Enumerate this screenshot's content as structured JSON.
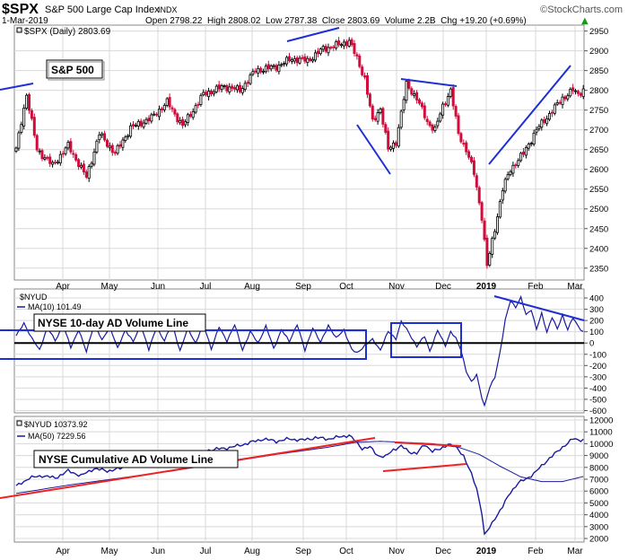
{
  "header": {
    "symbol": "$SPX",
    "name": "S&P 500 Large Cap Index",
    "exchange": "INDX",
    "date": "1-Mar-2019",
    "ohlc": "Open 2798.22  High 2808.02  Low 2787.38  Close 2803.69  Volume 2.2B  Chg +19.20 (+0.69%)",
    "change_arrow": "▲",
    "watermark": "©StockCharts.com"
  },
  "colors": {
    "up": "#000000",
    "down": "#d00c3c",
    "trendline_blue": "#1f2fd6",
    "trendline_red": "#ee2222",
    "indicator": "#1a1a9e",
    "zero_line": "#000000",
    "grid": "#d8d8d8"
  },
  "chart_data": [
    {
      "type": "candlestick",
      "legend": "$SPX (Daily) 2803.69",
      "annotation": "S&P 500",
      "ylim": [
        2320,
        2965
      ],
      "yticks": [
        2350,
        2400,
        2450,
        2500,
        2550,
        2600,
        2650,
        2700,
        2750,
        2800,
        2850,
        2900,
        2950
      ],
      "months": [
        "Apr",
        "May",
        "Jun",
        "Jul",
        "Aug",
        "Sep",
        "Oct",
        "Nov",
        "Dec",
        "2019",
        "Feb",
        "Mar"
      ],
      "close_anchors": [
        [
          0,
          2650
        ],
        [
          4,
          2790
        ],
        [
          8,
          2650
        ],
        [
          14,
          2610
        ],
        [
          20,
          2660
        ],
        [
          27,
          2580
        ],
        [
          32,
          2690
        ],
        [
          38,
          2640
        ],
        [
          44,
          2705
        ],
        [
          52,
          2730
        ],
        [
          58,
          2770
        ],
        [
          64,
          2710
        ],
        [
          72,
          2790
        ],
        [
          80,
          2810
        ],
        [
          86,
          2800
        ],
        [
          92,
          2850
        ],
        [
          100,
          2860
        ],
        [
          106,
          2880
        ],
        [
          112,
          2875
        ],
        [
          118,
          2905
        ],
        [
          124,
          2915
        ],
        [
          128,
          2925
        ],
        [
          131,
          2880
        ],
        [
          134,
          2830
        ],
        [
          137,
          2720
        ],
        [
          140,
          2755
        ],
        [
          143,
          2650
        ],
        [
          146,
          2670
        ],
        [
          150,
          2815
        ],
        [
          154,
          2780
        ],
        [
          158,
          2720
        ],
        [
          161,
          2700
        ],
        [
          164,
          2760
        ],
        [
          167,
          2800
        ],
        [
          170,
          2690
        ],
        [
          173,
          2650
        ],
        [
          176,
          2590
        ],
        [
          179,
          2480
        ],
        [
          181,
          2355
        ],
        [
          184,
          2450
        ],
        [
          187,
          2550
        ],
        [
          190,
          2600
        ],
        [
          195,
          2640
        ],
        [
          200,
          2700
        ],
        [
          205,
          2740
        ],
        [
          210,
          2780
        ],
        [
          214,
          2800
        ],
        [
          216,
          2790
        ],
        [
          218,
          2803.69
        ]
      ]
    },
    {
      "type": "line",
      "legend": "$NYUD",
      "ma_legend": "MA(10) 101.49",
      "annotation": "NYSE 10-day AD Volume Line",
      "ylim": [
        -620,
        480
      ],
      "yticks": [
        -600,
        -500,
        -400,
        -300,
        -200,
        -100,
        0,
        100,
        200,
        300,
        400
      ],
      "anchors": [
        [
          0,
          60
        ],
        [
          3,
          180
        ],
        [
          6,
          40
        ],
        [
          9,
          -60
        ],
        [
          12,
          140
        ],
        [
          15,
          20
        ],
        [
          18,
          160
        ],
        [
          21,
          -40
        ],
        [
          24,
          120
        ],
        [
          27,
          -80
        ],
        [
          30,
          180
        ],
        [
          33,
          20
        ],
        [
          36,
          150
        ],
        [
          39,
          -50
        ],
        [
          42,
          120
        ],
        [
          45,
          10
        ],
        [
          48,
          160
        ],
        [
          51,
          -60
        ],
        [
          54,
          140
        ],
        [
          57,
          20
        ],
        [
          60,
          170
        ],
        [
          63,
          -70
        ],
        [
          66,
          130
        ],
        [
          69,
          0
        ],
        [
          72,
          170
        ],
        [
          75,
          -50
        ],
        [
          78,
          140
        ],
        [
          81,
          20
        ],
        [
          84,
          160
        ],
        [
          87,
          -60
        ],
        [
          90,
          100
        ],
        [
          93,
          0
        ],
        [
          96,
          150
        ],
        [
          99,
          -50
        ],
        [
          102,
          120
        ],
        [
          105,
          10
        ],
        [
          108,
          170
        ],
        [
          111,
          -70
        ],
        [
          114,
          140
        ],
        [
          117,
          0
        ],
        [
          120,
          160
        ],
        [
          123,
          40
        ],
        [
          126,
          120
        ],
        [
          129,
          -60
        ],
        [
          131,
          -90
        ],
        [
          134,
          -20
        ],
        [
          137,
          30
        ],
        [
          140,
          -60
        ],
        [
          143,
          100
        ],
        [
          146,
          40
        ],
        [
          148,
          190
        ],
        [
          151,
          90
        ],
        [
          154,
          -30
        ],
        [
          157,
          60
        ],
        [
          159,
          -70
        ],
        [
          162,
          110
        ],
        [
          165,
          -20
        ],
        [
          167,
          100
        ],
        [
          169,
          40
        ],
        [
          171,
          -60
        ],
        [
          173,
          -250
        ],
        [
          175,
          -350
        ],
        [
          177,
          -280
        ],
        [
          179,
          -480
        ],
        [
          180,
          -560
        ],
        [
          182,
          -400
        ],
        [
          184,
          -300
        ],
        [
          186,
          -80
        ],
        [
          188,
          200
        ],
        [
          190,
          380
        ],
        [
          192,
          320
        ],
        [
          194,
          400
        ],
        [
          196,
          250
        ],
        [
          198,
          300
        ],
        [
          200,
          120
        ],
        [
          202,
          260
        ],
        [
          204,
          100
        ],
        [
          206,
          230
        ],
        [
          208,
          120
        ],
        [
          210,
          250
        ],
        [
          212,
          120
        ],
        [
          214,
          220
        ],
        [
          216,
          150
        ],
        [
          218,
          100
        ]
      ]
    },
    {
      "type": "line",
      "legend": "$NYUD 10373.92",
      "ma_legend": "MA(50) 7229.56",
      "annotation": "NYSE Cumulative AD Volume Line",
      "ylim": [
        1700,
        12300
      ],
      "yticks": [
        2000,
        3000,
        4000,
        5000,
        6000,
        7000,
        8000,
        9000,
        10000,
        11000,
        12000
      ],
      "anchors": [
        [
          0,
          6400
        ],
        [
          5,
          7100
        ],
        [
          10,
          7300
        ],
        [
          15,
          7100
        ],
        [
          20,
          7700
        ],
        [
          25,
          7300
        ],
        [
          30,
          7900
        ],
        [
          35,
          7700
        ],
        [
          40,
          7900
        ],
        [
          45,
          8300
        ],
        [
          50,
          8500
        ],
        [
          55,
          8700
        ],
        [
          60,
          8600
        ],
        [
          65,
          9000
        ],
        [
          70,
          9200
        ],
        [
          75,
          9500
        ],
        [
          80,
          9600
        ],
        [
          85,
          9800
        ],
        [
          90,
          10100
        ],
        [
          95,
          10400
        ],
        [
          100,
          10200
        ],
        [
          105,
          10400
        ],
        [
          110,
          10300
        ],
        [
          115,
          10500
        ],
        [
          120,
          10400
        ],
        [
          125,
          10600
        ],
        [
          128,
          10700
        ],
        [
          130,
          10300
        ],
        [
          133,
          9600
        ],
        [
          136,
          9700
        ],
        [
          139,
          9000
        ],
        [
          142,
          8900
        ],
        [
          145,
          9500
        ],
        [
          148,
          9800
        ],
        [
          151,
          9300
        ],
        [
          154,
          9200
        ],
        [
          157,
          9900
        ],
        [
          160,
          9400
        ],
        [
          163,
          9500
        ],
        [
          166,
          10000
        ],
        [
          169,
          9700
        ],
        [
          172,
          9000
        ],
        [
          175,
          7400
        ],
        [
          177,
          6200
        ],
        [
          179,
          4200
        ],
        [
          180,
          2300
        ],
        [
          182,
          2900
        ],
        [
          184,
          3700
        ],
        [
          187,
          4700
        ],
        [
          190,
          5900
        ],
        [
          193,
          6700
        ],
        [
          196,
          7000
        ],
        [
          199,
          7500
        ],
        [
          202,
          8100
        ],
        [
          205,
          8800
        ],
        [
          208,
          9300
        ],
        [
          211,
          9900
        ],
        [
          214,
          10400
        ],
        [
          216,
          10300
        ],
        [
          218,
          10373.92
        ]
      ],
      "ma_anchors": [
        [
          0,
          5800
        ],
        [
          20,
          6500
        ],
        [
          40,
          7100
        ],
        [
          60,
          7700
        ],
        [
          80,
          8400
        ],
        [
          100,
          9100
        ],
        [
          120,
          9700
        ],
        [
          130,
          10100
        ],
        [
          140,
          10200
        ],
        [
          150,
          10100
        ],
        [
          160,
          10000
        ],
        [
          170,
          9700
        ],
        [
          178,
          9100
        ],
        [
          186,
          8100
        ],
        [
          194,
          7200
        ],
        [
          202,
          6800
        ],
        [
          210,
          6800
        ],
        [
          218,
          7229.56
        ]
      ]
    }
  ]
}
